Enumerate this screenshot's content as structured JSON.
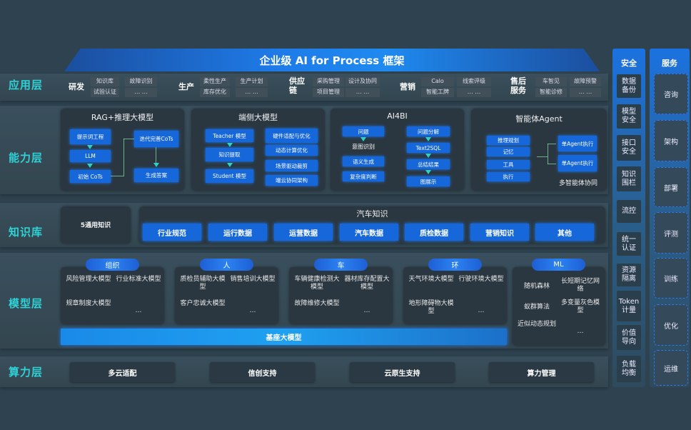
{
  "title": "企业级 AI for Process 框架",
  "layers": {
    "app": "应用层",
    "ability": "能力层",
    "knowledge": "知识库",
    "model": "模型层",
    "compute": "算力层"
  },
  "app_groups": [
    {
      "label": "研发",
      "items": [
        "知识库",
        "试验认证",
        "故障识别",
        "… …"
      ]
    },
    {
      "label": "生产",
      "items": [
        "柔性生产",
        "库存优化",
        "生产计划",
        "… …"
      ]
    },
    {
      "label": "供应链",
      "items": [
        "采购管理",
        "项目管理",
        "设计及协同",
        "… …"
      ]
    },
    {
      "label": "营销",
      "items": [
        "Calo",
        "智能工牌",
        "线索评级",
        "… …"
      ]
    },
    {
      "label": "售后服务",
      "items": [
        "车智见",
        "智能诊修",
        "故障预警",
        "… …"
      ]
    }
  ],
  "ability": {
    "rag": {
      "title": "RAG+推理大模型",
      "boxes": [
        "提示词工程",
        "LLM",
        "初始 CoTs",
        "迭代完善CoTs",
        "生成答案"
      ]
    },
    "edge": {
      "title": "端侧大模型",
      "boxes": [
        "Teacher 模型",
        "知识提取",
        "Student 模型",
        "硬件适配与优化",
        "动态计算优化",
        "场景驱动裁剪",
        "端云协同架构"
      ]
    },
    "ai4bi": {
      "title": "AI4BI",
      "boxes": [
        "问题",
        "意图识别",
        "语义生成",
        "复杂度判断",
        "问题分解",
        "Text2SQL",
        "总结结果",
        "图展示"
      ]
    },
    "agent": {
      "title": "智能体Agent",
      "boxes": [
        "推理规划",
        "记忆",
        "工具",
        "执行",
        "单Agent执行",
        "单Agent执行"
      ],
      "footer": "多智能体协同"
    }
  },
  "knowledge": {
    "general": "5通用知识",
    "auto_title": "汽车知识",
    "items": [
      "行业规范",
      "运行数据",
      "运营数据",
      "汽车数据",
      "质检数据",
      "营销知识",
      "其他"
    ]
  },
  "models": [
    {
      "label": "组织",
      "items": [
        "风险管理大模型",
        "行业标准大模型",
        "规章制度大模型",
        "…"
      ]
    },
    {
      "label": "人",
      "items": [
        "质检员辅助大模型",
        "销售培训大模型",
        "客户忠诚大模型",
        "…"
      ]
    },
    {
      "label": "车",
      "items": [
        "车辆健康检测大模型",
        "器材库存配置大模型",
        "故障维修大模型",
        "…"
      ]
    },
    {
      "label": "环",
      "items": [
        "天气环境大模型",
        "行驶环境大模型",
        "地形障碍物大模型",
        "…"
      ]
    },
    {
      "label": "ML",
      "items": [
        "随机森林",
        "长短期记忆网络",
        "蚁群算法",
        "多变量灰色模型",
        "近似动态规划",
        "…"
      ]
    }
  ],
  "base_model": "基座大模型",
  "compute": [
    "多云适配",
    "信创支持",
    "云原生支持",
    "算力管理"
  ],
  "security": {
    "title": "安全",
    "items": [
      "数据备份",
      "模型安全",
      "接口安全",
      "知识围栏",
      "流控",
      "统一认证",
      "资源隔离",
      "Token计量",
      "价值导向",
      "负载均衡"
    ]
  },
  "service": {
    "title": "服务",
    "items": [
      "咨询",
      "架构",
      "部署",
      "评测",
      "训练",
      "优化",
      "运维"
    ]
  },
  "colors": {
    "accent": "#1667d9",
    "layer_label": "#2fd2d6",
    "background": "#2e424f"
  }
}
